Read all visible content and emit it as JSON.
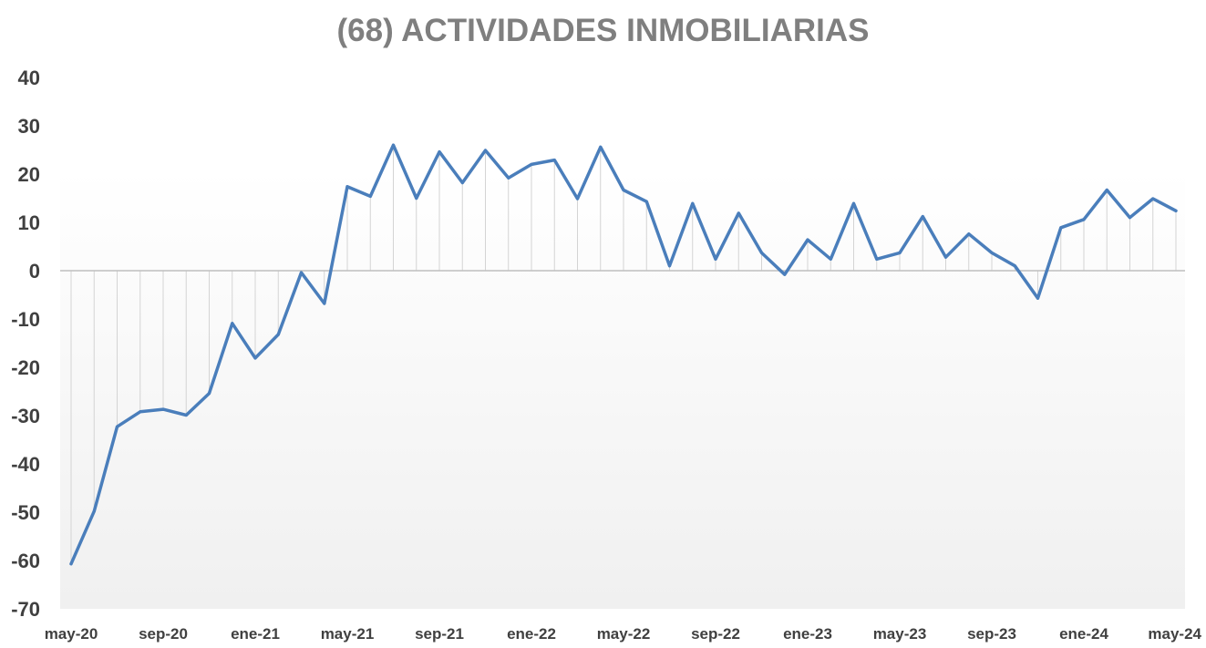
{
  "chart_data": {
    "type": "line",
    "title": "(68) ACTIVIDADES INMOBILIARIAS",
    "xlabel": "",
    "ylabel": "",
    "ylim": [
      -70,
      40
    ],
    "yticks": [
      40,
      30,
      20,
      10,
      0,
      -10,
      -20,
      -30,
      -40,
      -50,
      -60,
      -70
    ],
    "x_tick_labels": [
      "may-20",
      "sep-20",
      "ene-21",
      "may-21",
      "sep-21",
      "ene-22",
      "may-22",
      "sep-22",
      "ene-23",
      "may-23",
      "sep-23",
      "ene-24",
      "may-24"
    ],
    "x": [
      "may-20",
      "jun-20",
      "jul-20",
      "ago-20",
      "sep-20",
      "oct-20",
      "nov-20",
      "dic-20",
      "ene-21",
      "feb-21",
      "mar-21",
      "abr-21",
      "may-21",
      "jun-21",
      "jul-21",
      "ago-21",
      "sep-21",
      "oct-21",
      "nov-21",
      "dic-21",
      "ene-22",
      "feb-22",
      "mar-22",
      "abr-22",
      "may-22",
      "jun-22",
      "jul-22",
      "ago-22",
      "sep-22",
      "oct-22",
      "nov-22",
      "dic-22",
      "ene-23",
      "feb-23",
      "mar-23",
      "abr-23",
      "may-23",
      "jun-23",
      "jul-23",
      "ago-23",
      "sep-23",
      "oct-23",
      "nov-23",
      "dic-23",
      "ene-24",
      "feb-24",
      "mar-24",
      "abr-24",
      "may-24"
    ],
    "series": [
      {
        "color": "#4a7ebb",
        "values": [
          -60.7,
          -49.8,
          -32.3,
          -29.2,
          -28.7,
          -29.9,
          -25.4,
          -10.9,
          -18.1,
          -13.2,
          -0.4,
          -6.8,
          17.4,
          15.4,
          26.0,
          15.0,
          24.6,
          18.2,
          24.9,
          19.2,
          22.0,
          22.9,
          14.9,
          25.6,
          16.7,
          14.3,
          1.0,
          13.9,
          2.4,
          11.9,
          3.7,
          -0.8,
          6.4,
          2.4,
          13.9,
          2.4,
          3.7,
          11.2,
          2.8,
          7.6,
          3.7,
          1.0,
          -5.7,
          8.9,
          10.6,
          16.7,
          11.0,
          14.9,
          12.4
        ]
      }
    ],
    "grid": "vertical drop lines from line to zero axis",
    "legend": "none"
  }
}
